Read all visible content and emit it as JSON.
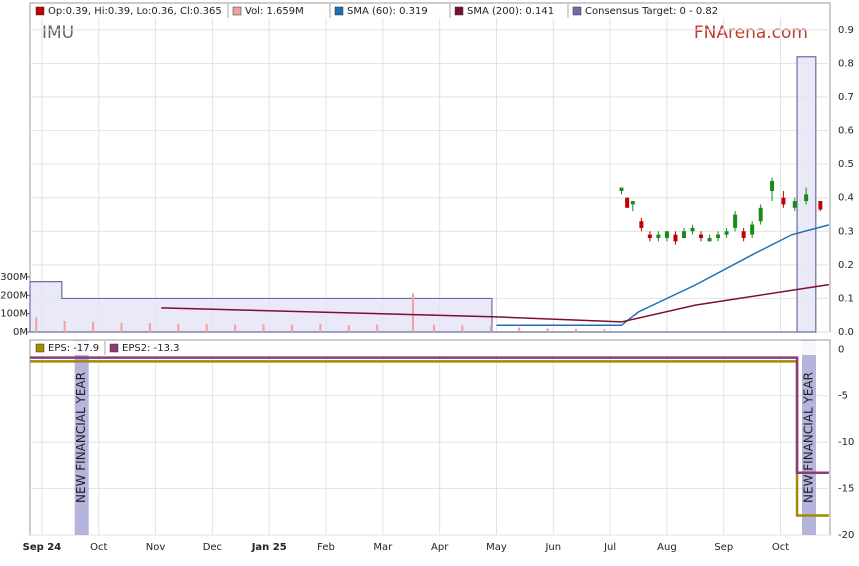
{
  "header": {
    "ticker": "IMU",
    "brand": "FNArena.com"
  },
  "chart_data": [
    {
      "type": "candlestick",
      "ohlc_label": "Op:0.39, Hi:0.39, Lo:0.36, Cl:0.365",
      "up_color": "#1a8a1a",
      "down_color": "#c00000",
      "legend_color": "#c00000",
      "xlim": [
        -0.21,
        13.87
      ],
      "xticks": [
        {
          "value": 0,
          "label": "Sep 24"
        },
        {
          "value": 1,
          "label": "Oct"
        },
        {
          "value": 2,
          "label": "Nov"
        },
        {
          "value": 3,
          "label": "Dec"
        },
        {
          "value": 4,
          "label": "Jan 25"
        },
        {
          "value": 5,
          "label": "Feb"
        },
        {
          "value": 6,
          "label": "Mar"
        },
        {
          "value": 7,
          "label": "Apr"
        },
        {
          "value": 8,
          "label": "May"
        },
        {
          "value": 9,
          "label": "Jun"
        },
        {
          "value": 10,
          "label": "Jul"
        },
        {
          "value": 11,
          "label": "Aug"
        },
        {
          "value": 12,
          "label": "Sep"
        },
        {
          "value": 13,
          "label": "Oct"
        }
      ],
      "ylim": [
        0,
        0.98
      ],
      "yticks": [
        {
          "value": 0,
          "label": "0.0"
        },
        0.1,
        0.2,
        0.3,
        0.4,
        0.5,
        0.6,
        0.7,
        0.8,
        0.9
      ],
      "y2lim": [
        0,
        1795
      ],
      "y2ticks": [
        {
          "value": 0,
          "label": "0M"
        },
        {
          "value": 100,
          "label": "100M"
        },
        {
          "value": 200,
          "label": "200M"
        },
        {
          "value": 300,
          "label": "300M"
        }
      ],
      "grid": true,
      "x": [
        10.2,
        10.3,
        10.4,
        10.55,
        10.7,
        10.85,
        11.0,
        11.15,
        11.3,
        11.45,
        11.6,
        11.75,
        11.9,
        12.05,
        12.2,
        12.35,
        12.5,
        12.65,
        12.85,
        13.05,
        13.25,
        13.45,
        13.7
      ],
      "open": [
        0.42,
        0.4,
        0.38,
        0.33,
        0.29,
        0.28,
        0.28,
        0.29,
        0.28,
        0.3,
        0.29,
        0.27,
        0.28,
        0.29,
        0.31,
        0.3,
        0.29,
        0.33,
        0.42,
        0.4,
        0.37,
        0.39,
        0.39
      ],
      "high": [
        0.43,
        0.4,
        0.39,
        0.34,
        0.3,
        0.3,
        0.3,
        0.3,
        0.31,
        0.32,
        0.3,
        0.29,
        0.3,
        0.31,
        0.36,
        0.31,
        0.33,
        0.38,
        0.46,
        0.42,
        0.4,
        0.43,
        0.39
      ],
      "low": [
        0.41,
        0.37,
        0.36,
        0.3,
        0.27,
        0.27,
        0.27,
        0.26,
        0.28,
        0.29,
        0.27,
        0.27,
        0.27,
        0.28,
        0.3,
        0.27,
        0.28,
        0.32,
        0.39,
        0.37,
        0.36,
        0.38,
        0.36
      ],
      "close": [
        0.43,
        0.37,
        0.39,
        0.31,
        0.28,
        0.29,
        0.3,
        0.27,
        0.3,
        0.31,
        0.28,
        0.28,
        0.29,
        0.3,
        0.35,
        0.28,
        0.32,
        0.37,
        0.45,
        0.38,
        0.39,
        0.41,
        0.365
      ],
      "series": [
        {
          "name": "Vol: 1.659M",
          "kind": "bar",
          "axis": "y2",
          "color": "#f2a0a0",
          "x": [
            -0.1,
            0.4,
            0.9,
            1.4,
            1.9,
            2.4,
            2.9,
            3.4,
            3.9,
            4.4,
            4.9,
            5.4,
            5.9,
            6.53,
            6.9,
            7.4,
            7.9,
            8.4,
            8.9,
            9.4,
            9.9
          ],
          "values": [
            80,
            60,
            55,
            50,
            48,
            45,
            45,
            40,
            42,
            40,
            45,
            38,
            40,
            210,
            40,
            35,
            30,
            25,
            20,
            18,
            15
          ]
        },
        {
          "name": "SMA (60): 0.319",
          "kind": "line",
          "color": "#1f6fb5",
          "x": [
            8,
            10.2,
            10.5,
            11.5,
            12.5,
            13.2,
            13.85
          ],
          "values": [
            0.02,
            0.02,
            0.06,
            0.14,
            0.23,
            0.29,
            0.319
          ]
        },
        {
          "name": "SMA (200): 0.141",
          "kind": "line",
          "color": "#7b1030",
          "x": [
            2.1,
            8,
            10.2,
            11.5,
            13.85
          ],
          "values": [
            0.072,
            0.045,
            0.03,
            0.08,
            0.141
          ]
        },
        {
          "name": "Consensus Target: 0 - 0.82",
          "kind": "area",
          "color": "#6c6ca8",
          "x": [
            -0.21,
            0.35,
            0.35,
            7.92,
            7.92,
            13.29,
            13.29,
            13.62
          ],
          "values": [
            0.15,
            0.15,
            0.1,
            0.1,
            0,
            0,
            0.82,
            0.82
          ]
        }
      ]
    },
    {
      "type": "line",
      "xlim": [
        -0.21,
        13.87
      ],
      "ylim": [
        -20,
        1
      ],
      "yticks": [
        0,
        -5,
        -10,
        -15,
        -20
      ],
      "grid": true,
      "annotations": [
        {
          "x": 0.7,
          "text": "NEW FINANCIAL YEAR"
        },
        {
          "x": 13.5,
          "text": "NEW FINANCIAL YEAR"
        }
      ],
      "series": [
        {
          "name": "EPS: -17.9",
          "color": "#a08c00",
          "x": [
            -0.21,
            13.29,
            13.29,
            13.85
          ],
          "values": [
            -1.3,
            -1.3,
            -17.9,
            -17.9
          ]
        },
        {
          "name": "EPS2: -13.3",
          "color": "#8b3a7a",
          "x": [
            -0.21,
            13.29,
            13.29,
            13.85
          ],
          "values": [
            -0.9,
            -0.9,
            -13.3,
            -13.3
          ]
        }
      ]
    }
  ]
}
